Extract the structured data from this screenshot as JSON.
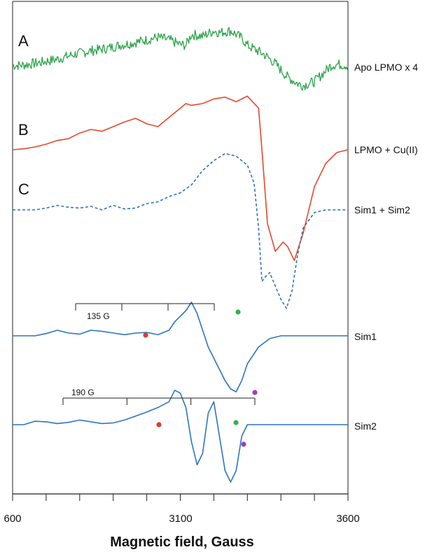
{
  "chart_data": {
    "type": "line",
    "title": "",
    "xlabel": "Magnetic field, Gauss",
    "ylabel": "",
    "xlim": [
      600,
      3600
    ],
    "x_ticks": [
      600,
      3100,
      3600
    ],
    "x_tick_labels": [
      "600",
      "3100",
      "3600"
    ],
    "minor_tick_step": 300,
    "grid": false,
    "panel_letters": [
      "A",
      "B",
      "C"
    ],
    "series": [
      {
        "name": "Apo LPMO x 4",
        "color": "#2ca34a",
        "style": "solid",
        "noise": true,
        "x": [
          600,
          700,
          850,
          1000,
          1150,
          1300,
          1450,
          1550,
          1650,
          1800,
          1900,
          2000,
          2100,
          2150,
          2200,
          2300,
          2400,
          2450,
          2550,
          2650,
          2700,
          2850,
          2950,
          3050,
          3150,
          3200,
          3300,
          3400,
          3450,
          3500,
          3600
        ],
        "y": [
          0.05,
          0.06,
          0.13,
          0.22,
          0.35,
          0.45,
          0.52,
          0.6,
          0.65,
          0.75,
          0.82,
          0.75,
          0.62,
          0.6,
          0.9,
          0.85,
          1.0,
          0.95,
          1.0,
          0.8,
          0.6,
          0.35,
          0.1,
          -0.25,
          -0.45,
          -0.5,
          -0.4,
          -0.1,
          0.05,
          0.08,
          0.05
        ]
      },
      {
        "name": "LPMO + Cu(II)",
        "color": "#e8472e",
        "style": "solid",
        "noise": false,
        "x": [
          600,
          700,
          800,
          900,
          1000,
          1100,
          1200,
          1300,
          1400,
          1500,
          1600,
          1700,
          1800,
          1900,
          2000,
          2100,
          2150,
          2200,
          2300,
          2400,
          2500,
          2600,
          2700,
          2800,
          2830,
          2880,
          2950,
          3020,
          3060,
          3080,
          3120,
          3200,
          3300,
          3400,
          3500,
          3600
        ],
        "y": [
          0.0,
          0.01,
          0.03,
          0.06,
          0.1,
          0.12,
          0.18,
          0.22,
          0.2,
          0.25,
          0.3,
          0.34,
          0.28,
          0.25,
          0.35,
          0.45,
          0.5,
          0.48,
          0.5,
          0.55,
          0.57,
          0.52,
          0.58,
          0.45,
          0.0,
          -0.8,
          -1.1,
          -1.0,
          -1.05,
          -1.1,
          -1.2,
          -0.9,
          -0.4,
          -0.15,
          -0.03,
          0.0
        ]
      },
      {
        "name": "Sim1 + Sim2",
        "color": "#2f6fbf",
        "style": "dashed",
        "noise": false,
        "x": [
          600,
          800,
          900,
          1000,
          1100,
          1200,
          1300,
          1400,
          1500,
          1600,
          1700,
          1800,
          1900,
          2000,
          2100,
          2200,
          2300,
          2400,
          2500,
          2600,
          2700,
          2760,
          2800,
          2830,
          2860,
          2900,
          2950,
          3000,
          3050,
          3100,
          3150,
          3200,
          3300,
          3400,
          3600
        ],
        "y": [
          0.0,
          0.0,
          0.02,
          0.05,
          0.03,
          0.02,
          0.04,
          0.0,
          0.05,
          0.01,
          0.02,
          0.07,
          0.09,
          0.15,
          0.19,
          0.28,
          0.44,
          0.55,
          0.63,
          0.6,
          0.5,
          0.3,
          -0.2,
          -0.8,
          -0.75,
          -0.7,
          -0.85,
          -1.0,
          -1.1,
          -0.9,
          -0.5,
          -0.2,
          -0.03,
          0.0,
          0.0
        ]
      },
      {
        "name": "Sim1",
        "color": "#2f74c0",
        "style": "solid",
        "noise": false,
        "x": [
          600,
          800,
          900,
          1000,
          1100,
          1200,
          1300,
          1400,
          1500,
          1600,
          1700,
          1800,
          1900,
          2000,
          2050,
          2100,
          2150,
          2200,
          2250,
          2300,
          2350,
          2400,
          2450,
          2500,
          2550,
          2600,
          2650,
          2700,
          2800,
          2900,
          3000,
          3100,
          3200,
          3300,
          3600
        ],
        "y": [
          0.0,
          0.0,
          0.04,
          0.1,
          0.05,
          0.03,
          0.1,
          0.08,
          0.05,
          0.02,
          0.05,
          0.06,
          0.02,
          0.1,
          0.25,
          0.35,
          0.45,
          0.6,
          0.4,
          0.1,
          -0.2,
          -0.4,
          -0.6,
          -0.8,
          -0.95,
          -1.0,
          -0.8,
          -0.5,
          -0.2,
          -0.05,
          0.0,
          0.0,
          0.0,
          0.0,
          0.0
        ]
      },
      {
        "name": "Sim2",
        "color": "#2f74c0",
        "style": "solid",
        "noise": false,
        "x": [
          600,
          700,
          800,
          900,
          1000,
          1100,
          1200,
          1300,
          1400,
          1500,
          1600,
          1700,
          1800,
          1900,
          2000,
          2050,
          2100,
          2150,
          2200,
          2250,
          2300,
          2350,
          2400,
          2450,
          2500,
          2550,
          2600,
          2650,
          2700,
          2800,
          2900,
          3000,
          3100,
          3200,
          3300,
          3600
        ],
        "y": [
          0.0,
          0.0,
          0.06,
          0.05,
          0.02,
          0.04,
          0.08,
          0.05,
          0.02,
          0.03,
          0.08,
          0.15,
          0.22,
          0.3,
          0.4,
          0.6,
          0.55,
          0.3,
          -0.3,
          -0.7,
          -0.5,
          0.2,
          0.4,
          -0.2,
          -0.8,
          -1.0,
          -0.8,
          -0.2,
          0.0,
          0.0,
          0.0,
          0.0,
          0.0,
          0.0,
          0.0,
          0.0
        ]
      }
    ],
    "annotations": [
      {
        "text": "135 G",
        "target": "Sim1",
        "ticks": 4
      },
      {
        "text": "190 G",
        "target": "Sim2",
        "ticks": 4
      }
    ],
    "marker_colors": {
      "red": "#e03a2a",
      "green": "#34b24a",
      "purple": "#9b3fb8"
    }
  }
}
